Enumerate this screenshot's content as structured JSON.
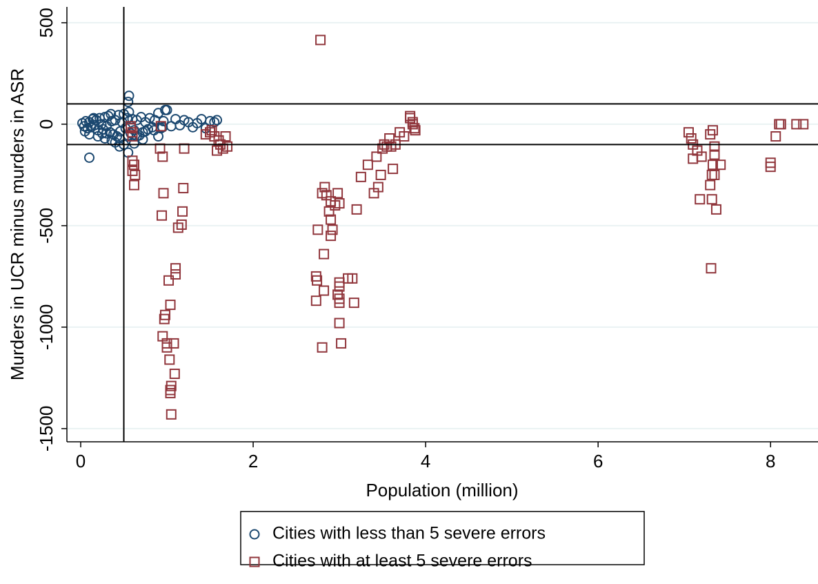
{
  "chart_data": {
    "type": "scatter",
    "x_label": "Population (million)",
    "y_label": "Murders in UCR minus murders in ASR",
    "xlim": [
      -0.16,
      8.55
    ],
    "ylim": [
      -1565,
      578
    ],
    "xticks": [
      0,
      2,
      4,
      6,
      8
    ],
    "yticks": [
      500,
      0,
      -500,
      -1000,
      -1500
    ],
    "grid": true,
    "hlines": [
      100,
      -100
    ],
    "vlines": [
      0.5
    ],
    "legend": "bottom",
    "series": [
      {
        "name": "Cities with less than 5 severe errors",
        "color": "#1a476f",
        "marker": "circle",
        "x": [
          0.02,
          0.04,
          0.06,
          0.08,
          0.1,
          0.12,
          0.14,
          0.16,
          0.18,
          0.2,
          0.22,
          0.24,
          0.26,
          0.28,
          0.3,
          0.32,
          0.34,
          0.36,
          0.38,
          0.4,
          0.42,
          0.44,
          0.46,
          0.48,
          0.5,
          0.52,
          0.54,
          0.56,
          0.58,
          0.6,
          0.62,
          0.65,
          0.68,
          0.7,
          0.72,
          0.75,
          0.78,
          0.8,
          0.83,
          0.86,
          0.9,
          0.93,
          0.96,
          1.0,
          1.05,
          1.1,
          1.15,
          1.2,
          1.25,
          1.3,
          1.35,
          1.4,
          1.45,
          1.5,
          1.55,
          1.58,
          0.05,
          0.15,
          0.25,
          0.35,
          0.45,
          0.55,
          0.65,
          0.75,
          0.85,
          0.95,
          0.1,
          0.2,
          0.3,
          0.4,
          0.5,
          0.56,
          0.55,
          0.98,
          0.1,
          0.45,
          0.55,
          0.9,
          0.36,
          0.28,
          0.62,
          0.72
        ],
        "y": [
          5,
          -10,
          15,
          -20,
          10,
          -15,
          25,
          -5,
          20,
          -30,
          30,
          0,
          -25,
          35,
          -10,
          40,
          -40,
          15,
          -50,
          20,
          -60,
          45,
          -35,
          10,
          50,
          -20,
          30,
          140,
          -45,
          25,
          -30,
          20,
          -55,
          35,
          -40,
          10,
          -25,
          30,
          -15,
          20,
          55,
          -20,
          15,
          70,
          -10,
          25,
          -5,
          20,
          10,
          -15,
          5,
          25,
          -20,
          15,
          10,
          20,
          -35,
          30,
          -45,
          50,
          -70,
          -55,
          -60,
          -35,
          -30,
          -15,
          -50,
          -60,
          -45,
          -90,
          -100,
          60,
          110,
          70,
          -165,
          -110,
          -140,
          -60,
          -80,
          -70,
          -95,
          -75
        ]
      },
      {
        "name": "Cities with at least 5 severe errors",
        "color": "#90353b",
        "marker": "square",
        "x": [
          0.58,
          0.6,
          0.6,
          0.6,
          0.62,
          0.6,
          0.63,
          0.62,
          0.58,
          0.93,
          0.95,
          0.92,
          0.96,
          0.94,
          1.19,
          1.18,
          1.17,
          1.13,
          1.1,
          1.1,
          1.02,
          1.04,
          0.98,
          0.97,
          0.95,
          1.0,
          1.0,
          1.08,
          1.03,
          1.09,
          1.05,
          1.04,
          1.04,
          1.05,
          1.2,
          1.45,
          1.5,
          1.55,
          1.6,
          1.62,
          1.65,
          1.7,
          1.68,
          1.58,
          1.52,
          2.78,
          2.83,
          2.8,
          2.85,
          2.9,
          2.95,
          3.0,
          2.98,
          2.88,
          2.9,
          2.92,
          2.75,
          2.9,
          2.82,
          2.73,
          2.74,
          2.73,
          2.82,
          3.0,
          3.0,
          3.1,
          3.15,
          2.98,
          3.0,
          3.0,
          3.17,
          3.0,
          3.02,
          2.8,
          3.2,
          3.25,
          3.33,
          3.4,
          3.45,
          3.43,
          3.48,
          3.5,
          3.52,
          3.55,
          3.58,
          3.6,
          3.62,
          3.65,
          3.7,
          3.75,
          3.82,
          3.85,
          3.87,
          3.88,
          3.82,
          3.85,
          7.05,
          7.08,
          7.1,
          7.1,
          7.15,
          7.2,
          7.18,
          7.3,
          7.33,
          7.35,
          7.35,
          7.33,
          7.32,
          7.35,
          7.3,
          7.32,
          7.37,
          7.31,
          7.42,
          8.0,
          8.0,
          8.06,
          8.1,
          8.12,
          8.3,
          8.38
        ],
        "y": [
          -20,
          -40,
          -60,
          -180,
          -200,
          -230,
          -250,
          -300,
          -10,
          -10,
          -160,
          -120,
          -340,
          -450,
          -315,
          -430,
          -495,
          -510,
          -710,
          -740,
          -770,
          -890,
          -940,
          -960,
          -1045,
          -1080,
          -1100,
          -1080,
          -1160,
          -1230,
          -1290,
          -1310,
          -1325,
          -1430,
          -120,
          -50,
          -40,
          -60,
          -80,
          -100,
          -120,
          -110,
          -60,
          -130,
          -30,
          415,
          -310,
          -340,
          -350,
          -380,
          -400,
          -390,
          -340,
          -430,
          -470,
          -520,
          -520,
          -550,
          -640,
          -750,
          -770,
          -870,
          -820,
          -780,
          -800,
          -760,
          -760,
          -840,
          -860,
          -880,
          -880,
          -980,
          -1080,
          -1100,
          -420,
          -260,
          -200,
          -340,
          -310,
          -160,
          -250,
          -120,
          -100,
          -110,
          -70,
          -110,
          -220,
          -100,
          -40,
          -60,
          30,
          0,
          -20,
          -30,
          40,
          10,
          -40,
          -70,
          -100,
          -170,
          -130,
          -160,
          -370,
          -50,
          -30,
          -110,
          -150,
          -200,
          -250,
          -250,
          -300,
          -370,
          -420,
          -710,
          -200,
          -190,
          -210,
          -60,
          0,
          0,
          0,
          0
        ]
      }
    ]
  }
}
